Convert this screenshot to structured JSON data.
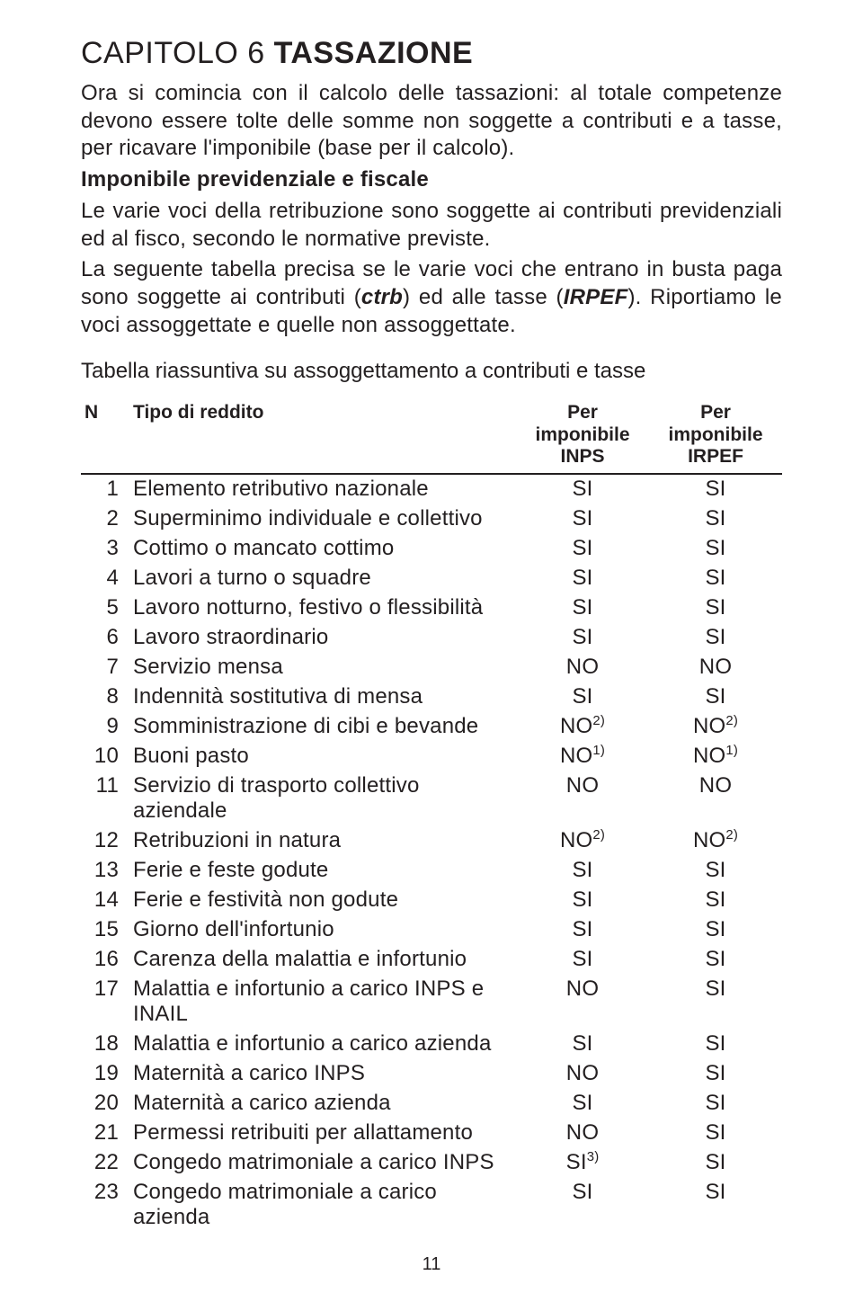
{
  "chapter": {
    "pre": "CAPITOLO 6 ",
    "bold": "TASSAZIONE"
  },
  "p1": "Ora si comincia con il calcolo delle tassazioni: al totale competenze devono essere tolte delle somme non soggette a contributi e a tasse, per ricavare l'imponibile (base per il calcolo).",
  "sub1": "Imponibile previdenziale e fiscale",
  "p2": "Le varie voci della retribuzione sono soggette ai contributi previdenziali ed al fisco, secondo le normative previste.",
  "p3a": "La seguente tabella precisa se le varie voci che entrano in busta paga sono soggette ai contributi (",
  "p3_ctrb": "ctrb",
  "p3b": ") ed alle tasse (",
  "p3_irpef": "IRPEF",
  "p3c": "). Riportiamo le voci assoggettate e quelle non assoggettate.",
  "tableTitle": "Tabella riassuntiva su assoggettamento a contributi e tasse",
  "headers": {
    "n": "N",
    "tipo": "Tipo di reddito",
    "inps1": "Per imponibile",
    "inps2": "INPS",
    "irpef1": "Per imponibile",
    "irpef2": "IRPEF"
  },
  "rows": [
    {
      "n": "1",
      "d": "Elemento retributivo nazionale",
      "a": "SI",
      "as": "",
      "b": "SI",
      "bs": ""
    },
    {
      "n": "2",
      "d": "Superminimo individuale e collettivo",
      "a": "SI",
      "as": "",
      "b": "SI",
      "bs": ""
    },
    {
      "n": "3",
      "d": "Cottimo o mancato cottimo",
      "a": "SI",
      "as": "",
      "b": "SI",
      "bs": ""
    },
    {
      "n": "4",
      "d": "Lavori a turno o squadre",
      "a": "SI",
      "as": "",
      "b": "SI",
      "bs": ""
    },
    {
      "n": "5",
      "d": "Lavoro notturno, festivo o flessibilità",
      "a": "SI",
      "as": "",
      "b": "SI",
      "bs": ""
    },
    {
      "n": "6",
      "d": "Lavoro straordinario",
      "a": "SI",
      "as": "",
      "b": "SI",
      "bs": ""
    },
    {
      "n": "7",
      "d": "Servizio mensa",
      "a": "NO",
      "as": "",
      "b": "NO",
      "bs": ""
    },
    {
      "n": "8",
      "d": "Indennità sostitutiva di mensa",
      "a": "SI",
      "as": "",
      "b": "SI",
      "bs": ""
    },
    {
      "n": "9",
      "d": "Somministrazione di cibi e bevande",
      "a": "NO",
      "as": "2)",
      "b": "NO",
      "bs": "2)"
    },
    {
      "n": "10",
      "d": "Buoni pasto",
      "a": "NO",
      "as": "1)",
      "b": "NO",
      "bs": "1)"
    },
    {
      "n": "11",
      "d": "Servizio di trasporto collettivo aziendale",
      "a": "NO",
      "as": "",
      "b": "NO",
      "bs": ""
    },
    {
      "n": "12",
      "d": "Retribuzioni in natura",
      "a": "NO",
      "as": "2)",
      "b": "NO",
      "bs": "2)"
    },
    {
      "n": "13",
      "d": "Ferie e feste godute",
      "a": "SI",
      "as": "",
      "b": "SI",
      "bs": ""
    },
    {
      "n": "14",
      "d": "Ferie e festività non godute",
      "a": "SI",
      "as": "",
      "b": "SI",
      "bs": ""
    },
    {
      "n": "15",
      "d": "Giorno dell'infortunio",
      "a": "SI",
      "as": "",
      "b": "SI",
      "bs": ""
    },
    {
      "n": "16",
      "d": "Carenza della malattia e infortunio",
      "a": "SI",
      "as": "",
      "b": "SI",
      "bs": ""
    },
    {
      "n": "17",
      "d": "Malattia e infortunio a carico INPS e INAIL",
      "a": "NO",
      "as": "",
      "b": "SI",
      "bs": ""
    },
    {
      "n": "18",
      "d": "Malattia e infortunio a carico azienda",
      "a": "SI",
      "as": "",
      "b": "SI",
      "bs": ""
    },
    {
      "n": "19",
      "d": "Maternità a carico INPS",
      "a": "NO",
      "as": "",
      "b": "SI",
      "bs": ""
    },
    {
      "n": "20",
      "d": "Maternità a carico azienda",
      "a": "SI",
      "as": "",
      "b": "SI",
      "bs": ""
    },
    {
      "n": "21",
      "d": "Permessi retribuiti per allattamento",
      "a": "NO",
      "as": "",
      "b": "SI",
      "bs": ""
    },
    {
      "n": "22",
      "d": "Congedo matrimoniale a carico INPS",
      "a": "SI",
      "as": "3)",
      "b": "SI",
      "bs": ""
    },
    {
      "n": "23",
      "d": "Congedo matrimoniale a carico azienda",
      "a": "SI",
      "as": "",
      "b": "SI",
      "bs": ""
    }
  ],
  "pageNumber": "11"
}
